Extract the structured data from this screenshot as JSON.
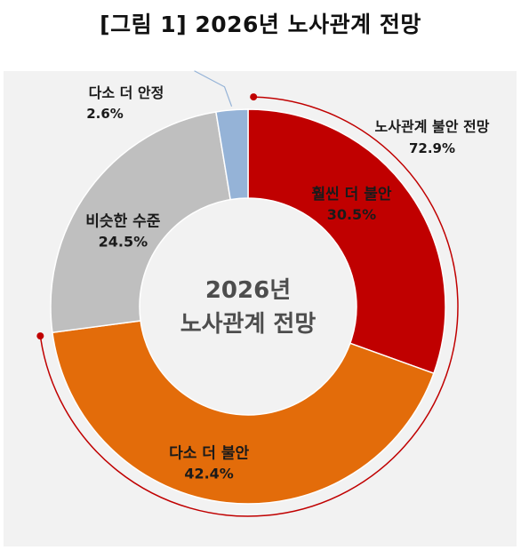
{
  "figure_title": "[그림 1] 2026년 노사관계 전망",
  "chart_data": {
    "type": "pie",
    "title": "[그림 1] 2026년 노사관계 전망",
    "center_label": [
      "2026년",
      "노사관계 전망"
    ],
    "unit": "%",
    "slices": [
      {
        "label": "훨씬 더 불안",
        "value": 30.5,
        "value_text": "30.5%",
        "color": "#c00000"
      },
      {
        "label": "다소 더 불안",
        "value": 42.4,
        "value_text": "42.4%",
        "color": "#e36c0a"
      },
      {
        "label": "비슷한 수준",
        "value": 24.5,
        "value_text": "24.5%",
        "color": "#bfbfbf"
      },
      {
        "label": "다소 더 안정",
        "value": 2.6,
        "value_text": "2.6%",
        "color": "#95b3d7"
      }
    ],
    "group_annotation": {
      "label": "노사관계 불안 전망",
      "value": 72.9,
      "value_text": "72.9%",
      "color": "#c00000"
    }
  }
}
